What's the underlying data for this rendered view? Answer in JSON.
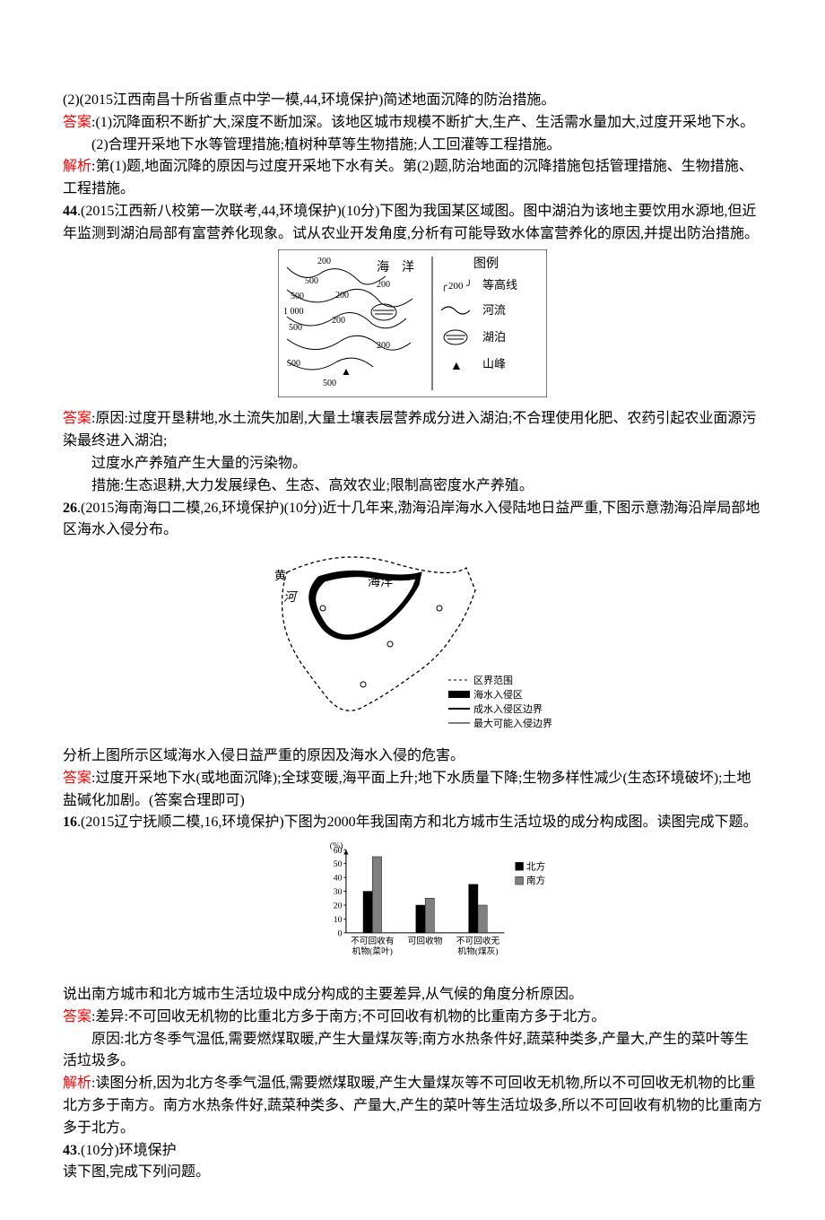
{
  "q1": {
    "prompt": "(2)(2015江西南昌十所省重点中学一模,44,环境保护)简述地面沉降的防治措施。",
    "ansLabel": "答案",
    "ans1": ":(1)沉降面积不断扩大,深度不断加深。该地区城市规模不断扩大,生产、生活需水量加大,过度开采地下水。",
    "ans2": "(2)合理开采地下水等管理措施;植树种草等生物措施;人工回灌等工程措施。",
    "explLabel": "解析",
    "expl": ":第(1)题,地面沉降的原因与过度开采地下水有关。第(2)题,防治地面的沉降措施包括管理措施、生物措施、工程措施。"
  },
  "q44": {
    "num": "44",
    "prompt": ".(2015江西新八校第一次联考,44,环境保护)(10分)下图为我国某区域图。图中湖泊为该地主要饮用水源地,但近年监测到湖泊局部有富营养化现象。试从农业开发角度,分析有可能导致水体富营养化的原因,并提出防治措施。",
    "ansLabel": "答案",
    "ans1": ":原因:过度开垦耕地,水土流失加剧,大量土壤表层营养成分进入湖泊;不合理使用化肥、农药引起农业面源污染最终进入湖泊;",
    "ans2": "过度水产养殖产生大量的污染物。",
    "ans3": "措施:生态退耕,大力发展绿色、生态、高效农业;限制高密度水产养殖。",
    "fig": {
      "contours": [
        "200",
        "500",
        "500",
        "200",
        "1 000",
        "200",
        "500",
        "500",
        "200",
        "200",
        "500"
      ],
      "legend_title": "图例",
      "legend_items": [
        "等高线",
        "河流",
        "湖泊",
        "山峰"
      ],
      "contour_sample": "200",
      "sea": "海　洋",
      "triangle": "▲"
    }
  },
  "q26": {
    "num": "26",
    "prompt": ".(2015海南海口二模,26,环境保护)(10分)近十几年来,渤海沿岸海水入侵陆地日益严重,下图示意渤海沿岸局部地区海水入侵分布。",
    "after": "分析上图所示区域海水入侵日益严重的原因及海水入侵的危害。",
    "ansLabel": "答案",
    "ans": ":过度开采地下水(或地面沉降);全球变暖,海平面上升;地下水质量下降;生物多样性减少(生态环境破坏);土地盐碱化加剧。(答案合理即可)",
    "fig": {
      "river": "河",
      "sea": "海洋",
      "huang": "黄",
      "legend": [
        "区界范围",
        "海水入侵区",
        "成水入侵区边界",
        "最大可能入侵边界"
      ]
    }
  },
  "q16": {
    "num": "16",
    "prompt": ".(2015辽宁抚顺二模,16,环境保护)下图为2000年我国南方和北方城市生活垃圾的成分构成图。读图完成下题。",
    "after": "说出南方城市和北方城市生活垃圾中成分构成的主要差异,从气候的角度分析原因。",
    "ansLabel": "答案",
    "ans1": ":差异:不可回收无机物的比重北方多于南方;不可回收有机物的比重南方多于北方。",
    "ans2": "原因:北方冬季气温低,需要燃煤取暖,产生大量煤灰等;南方水热条件好,蔬菜种类多,产量大,产生的菜叶等生活垃圾多。",
    "explLabel": "解析",
    "expl": ":读图分析,因为北方冬季气温低,需要燃煤取暖,产生大量煤灰等不可回收无机物,所以不可回收无机物的比重北方多于南方。南方水热条件好,蔬菜种类多、产量大,产生的菜叶等生活垃圾多,所以不可回收有机物的比重南方多于北方。",
    "chart": {
      "type": "bar",
      "y_label": "(%)",
      "y_ticks": [
        0,
        10,
        20,
        30,
        40,
        50,
        60
      ],
      "categories": [
        "不可回收有\n机物(菜叶)",
        "可回收物",
        "不可回收无\n机物(煤灰)"
      ],
      "series": [
        {
          "name": "北方",
          "color": "#000000",
          "values": [
            30,
            20,
            35
          ]
        },
        {
          "name": "南方",
          "color": "#808080",
          "values": [
            55,
            25,
            20
          ]
        }
      ],
      "bar_width": 0.35,
      "legend": [
        "北方",
        "南方"
      ],
      "legend_colors": [
        "#000000",
        "#808080"
      ],
      "axis_color": "#000000",
      "background": "#ffffff",
      "font_size": 11
    }
  },
  "q43": {
    "num": "43",
    "prompt": ".(10分)环境保护",
    "after": "读下图,完成下列问题。"
  }
}
